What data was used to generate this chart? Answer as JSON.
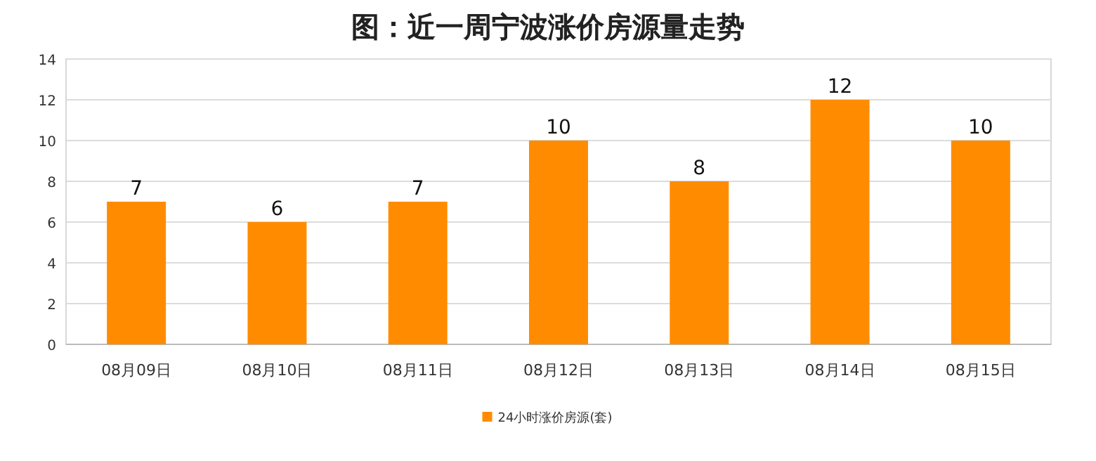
{
  "chart_data": {
    "type": "bar",
    "title": "图：近一周宁波涨价房源量走势",
    "categories": [
      "08月09日",
      "08月10日",
      "08月11日",
      "08月12日",
      "08月13日",
      "08月14日",
      "08月15日"
    ],
    "series": [
      {
        "name": "24小时涨价房源(套)",
        "color": "#ff8c00",
        "values": [
          7,
          6,
          7,
          10,
          8,
          12,
          10
        ]
      }
    ],
    "ylim": [
      0,
      14
    ],
    "yticks": [
      0,
      2,
      4,
      6,
      8,
      10,
      12,
      14
    ],
    "grid": "y",
    "legend": "bottom",
    "data_labels": true
  }
}
